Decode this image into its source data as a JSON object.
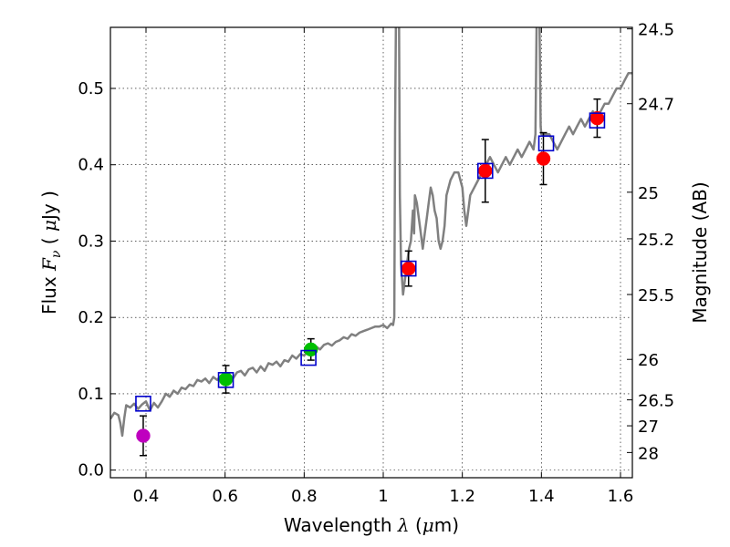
{
  "chart_data": {
    "type": "scatter",
    "xlabel": "Wavelength  λ (μm)",
    "ylabel": "Flux  Fν  ( μJy )",
    "ylabel_right": "Magnitude (AB)",
    "xlim": [
      0.31,
      1.63
    ],
    "ylim": [
      -0.01,
      0.58
    ],
    "grid": true,
    "x_ticks": [
      0.4,
      0.6,
      0.8,
      1.0,
      1.2,
      1.4,
      1.6
    ],
    "x_tick_labels": [
      "0.4",
      "0.6",
      "0.8",
      "1",
      "1.2",
      "1.4",
      "1.6"
    ],
    "y_ticks": [
      0.0,
      0.1,
      0.2,
      0.3,
      0.4,
      0.5
    ],
    "y_tick_labels": [
      "0.0",
      "0.1",
      "0.2",
      "0.3",
      "0.4",
      "0.5"
    ],
    "right_ticks": [
      {
        "label": "24.5",
        "flux": 0.578
      },
      {
        "label": "24.7",
        "flux": 0.48
      },
      {
        "label": "25",
        "flux": 0.364
      },
      {
        "label": "25.2",
        "flux": 0.303
      },
      {
        "label": "25.5",
        "flux": 0.23
      },
      {
        "label": "26",
        "flux": 0.145
      },
      {
        "label": "26.5",
        "flux": 0.092
      },
      {
        "label": "27",
        "flux": 0.058
      },
      {
        "label": "28",
        "flux": 0.023
      }
    ],
    "model_spectrum": {
      "name": "model",
      "color": "#808080",
      "points": [
        [
          0.31,
          0.067
        ],
        [
          0.32,
          0.075
        ],
        [
          0.33,
          0.072
        ],
        [
          0.335,
          0.062
        ],
        [
          0.34,
          0.045
        ],
        [
          0.345,
          0.068
        ],
        [
          0.35,
          0.085
        ],
        [
          0.36,
          0.082
        ],
        [
          0.37,
          0.087
        ],
        [
          0.38,
          0.08
        ],
        [
          0.39,
          0.086
        ],
        [
          0.4,
          0.09
        ],
        [
          0.41,
          0.078
        ],
        [
          0.42,
          0.088
        ],
        [
          0.43,
          0.082
        ],
        [
          0.44,
          0.09
        ],
        [
          0.45,
          0.1
        ],
        [
          0.46,
          0.096
        ],
        [
          0.47,
          0.104
        ],
        [
          0.48,
          0.1
        ],
        [
          0.49,
          0.108
        ],
        [
          0.5,
          0.106
        ],
        [
          0.51,
          0.112
        ],
        [
          0.52,
          0.11
        ],
        [
          0.53,
          0.118
        ],
        [
          0.54,
          0.116
        ],
        [
          0.55,
          0.12
        ],
        [
          0.56,
          0.114
        ],
        [
          0.57,
          0.122
        ],
        [
          0.58,
          0.118
        ],
        [
          0.59,
          0.124
        ],
        [
          0.6,
          0.122
        ],
        [
          0.61,
          0.126
        ],
        [
          0.62,
          0.12
        ],
        [
          0.63,
          0.128
        ],
        [
          0.64,
          0.13
        ],
        [
          0.65,
          0.124
        ],
        [
          0.66,
          0.132
        ],
        [
          0.67,
          0.134
        ],
        [
          0.68,
          0.128
        ],
        [
          0.69,
          0.136
        ],
        [
          0.7,
          0.13
        ],
        [
          0.71,
          0.14
        ],
        [
          0.72,
          0.138
        ],
        [
          0.73,
          0.142
        ],
        [
          0.74,
          0.136
        ],
        [
          0.75,
          0.144
        ],
        [
          0.76,
          0.142
        ],
        [
          0.77,
          0.15
        ],
        [
          0.78,
          0.146
        ],
        [
          0.79,
          0.152
        ],
        [
          0.8,
          0.15
        ],
        [
          0.81,
          0.156
        ],
        [
          0.82,
          0.16
        ],
        [
          0.83,
          0.162
        ],
        [
          0.84,
          0.158
        ],
        [
          0.85,
          0.164
        ],
        [
          0.86,
          0.166
        ],
        [
          0.87,
          0.163
        ],
        [
          0.88,
          0.168
        ],
        [
          0.89,
          0.17
        ],
        [
          0.9,
          0.174
        ],
        [
          0.91,
          0.172
        ],
        [
          0.92,
          0.178
        ],
        [
          0.93,
          0.176
        ],
        [
          0.94,
          0.18
        ],
        [
          0.95,
          0.182
        ],
        [
          0.96,
          0.184
        ],
        [
          0.97,
          0.186
        ],
        [
          0.98,
          0.188
        ],
        [
          0.99,
          0.188
        ],
        [
          1.0,
          0.19
        ],
        [
          1.01,
          0.186
        ],
        [
          1.02,
          0.192
        ],
        [
          1.025,
          0.19
        ],
        [
          1.028,
          0.2
        ],
        [
          1.03,
          0.45
        ],
        [
          1.032,
          0.59
        ],
        [
          1.04,
          0.59
        ],
        [
          1.042,
          0.36
        ],
        [
          1.045,
          0.27
        ],
        [
          1.05,
          0.23
        ],
        [
          1.055,
          0.25
        ],
        [
          1.06,
          0.27
        ],
        [
          1.065,
          0.29
        ],
        [
          1.07,
          0.3
        ],
        [
          1.075,
          0.34
        ],
        [
          1.078,
          0.31
        ],
        [
          1.08,
          0.36
        ],
        [
          1.085,
          0.35
        ],
        [
          1.09,
          0.33
        ],
        [
          1.095,
          0.31
        ],
        [
          1.1,
          0.29
        ],
        [
          1.105,
          0.31
        ],
        [
          1.11,
          0.33
        ],
        [
          1.115,
          0.35
        ],
        [
          1.12,
          0.37
        ],
        [
          1.125,
          0.36
        ],
        [
          1.13,
          0.34
        ],
        [
          1.135,
          0.33
        ],
        [
          1.14,
          0.3
        ],
        [
          1.145,
          0.29
        ],
        [
          1.15,
          0.3
        ],
        [
          1.155,
          0.32
        ],
        [
          1.16,
          0.36
        ],
        [
          1.17,
          0.38
        ],
        [
          1.18,
          0.39
        ],
        [
          1.19,
          0.39
        ],
        [
          1.195,
          0.38
        ],
        [
          1.2,
          0.37
        ],
        [
          1.205,
          0.34
        ],
        [
          1.21,
          0.32
        ],
        [
          1.215,
          0.34
        ],
        [
          1.22,
          0.36
        ],
        [
          1.23,
          0.37
        ],
        [
          1.24,
          0.38
        ],
        [
          1.25,
          0.39
        ],
        [
          1.26,
          0.4
        ],
        [
          1.27,
          0.41
        ],
        [
          1.28,
          0.4
        ],
        [
          1.29,
          0.39
        ],
        [
          1.3,
          0.4
        ],
        [
          1.31,
          0.41
        ],
        [
          1.32,
          0.4
        ],
        [
          1.33,
          0.41
        ],
        [
          1.34,
          0.42
        ],
        [
          1.35,
          0.41
        ],
        [
          1.36,
          0.42
        ],
        [
          1.37,
          0.43
        ],
        [
          1.38,
          0.42
        ],
        [
          1.385,
          0.44
        ],
        [
          1.388,
          0.59
        ],
        [
          1.395,
          0.59
        ],
        [
          1.398,
          0.45
        ],
        [
          1.4,
          0.44
        ],
        [
          1.41,
          0.44
        ],
        [
          1.42,
          0.44
        ],
        [
          1.43,
          0.43
        ],
        [
          1.44,
          0.42
        ],
        [
          1.45,
          0.43
        ],
        [
          1.46,
          0.44
        ],
        [
          1.47,
          0.45
        ],
        [
          1.48,
          0.44
        ],
        [
          1.49,
          0.45
        ],
        [
          1.5,
          0.46
        ],
        [
          1.51,
          0.45
        ],
        [
          1.52,
          0.46
        ],
        [
          1.53,
          0.47
        ],
        [
          1.54,
          0.46
        ],
        [
          1.55,
          0.47
        ],
        [
          1.56,
          0.48
        ],
        [
          1.57,
          0.48
        ],
        [
          1.58,
          0.49
        ],
        [
          1.59,
          0.5
        ],
        [
          1.6,
          0.5
        ],
        [
          1.61,
          0.51
        ],
        [
          1.62,
          0.52
        ],
        [
          1.63,
          0.52
        ]
      ]
    },
    "observed_points": [
      {
        "x": 0.393,
        "y": 0.045,
        "yerr": 0.026,
        "color": "#bf00bf"
      },
      {
        "x": 0.602,
        "y": 0.119,
        "yerr": 0.018,
        "color": "#00bf00"
      },
      {
        "x": 0.817,
        "y": 0.158,
        "yerr": 0.014,
        "color": "#00bf00"
      },
      {
        "x": 1.064,
        "y": 0.264,
        "yerr": 0.023,
        "color": "#ff0000"
      },
      {
        "x": 1.258,
        "y": 0.392,
        "yerr": 0.041,
        "color": "#ff0000"
      },
      {
        "x": 1.405,
        "y": 0.408,
        "yerr": 0.034,
        "color": "#ff0000"
      },
      {
        "x": 1.541,
        "y": 0.461,
        "yerr": 0.025,
        "color": "#ff0000"
      }
    ],
    "model_points": [
      {
        "x": 0.393,
        "y": 0.087,
        "color": "#0000cc"
      },
      {
        "x": 0.602,
        "y": 0.118,
        "color": "#0000cc"
      },
      {
        "x": 0.811,
        "y": 0.147,
        "color": "#0000cc"
      },
      {
        "x": 1.064,
        "y": 0.264,
        "color": "#0000cc"
      },
      {
        "x": 1.258,
        "y": 0.392,
        "color": "#0000cc"
      },
      {
        "x": 1.412,
        "y": 0.428,
        "color": "#0000cc"
      },
      {
        "x": 1.541,
        "y": 0.458,
        "color": "#0000cc"
      }
    ]
  }
}
